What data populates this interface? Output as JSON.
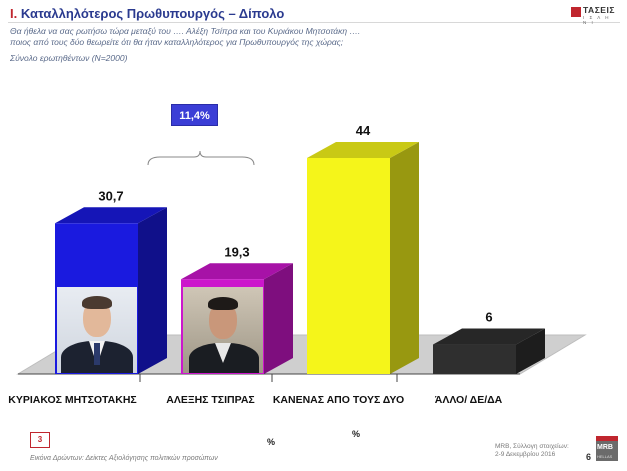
{
  "header": {
    "title_num": "Ι.",
    "title_text": "Καταλληλότερος Πρωθυπουργός – Δίπολο",
    "subtitle_line1": "Θα ήθελα να σας ρωτήσω τώρα μεταξύ του …. Αλέξη Τσίπρα και του Κυριάκου Μητσοτάκη ….",
    "subtitle_line2": "ποιος από τους δύο θεωρείτε ότι θα ήταν καταλληλότερος για Πρωθυπουργός της χώρας;",
    "subtitle_line3": "Σύνολο ερωτηθέντων (N=2000)",
    "logo_text": "ΤΑΣΕΙΣ",
    "logo_subtext": "Ι Σ Λ Η Ν Ι"
  },
  "chart_data": {
    "type": "bar",
    "categories": [
      "ΚΥΡΙΑΚΟΣ ΜΗΤΣΟΤΑΚΗΣ",
      "ΑΛΕΞΗΣ ΤΣΙΠΡΑΣ",
      "ΚΑΝΕΝΑΣ ΑΠΟ ΤΟΥΣ ΔΥΟ",
      "ΆΛΛΟ/ ΔΕ/ΔΑ"
    ],
    "values": [
      30.7,
      19.3,
      44,
      6
    ],
    "value_labels": [
      "30,7",
      "19,3",
      "44",
      "6"
    ],
    "colors": [
      "#1a1adf",
      "#cc16cc",
      "#f5f51a",
      "#2f2f2f"
    ],
    "unit_label": "%",
    "annotation": {
      "label": "11,4%",
      "between": [
        "ΚΥΡΙΑΚΟΣ ΜΗΤΣΟΤΑΚΗΣ",
        "ΑΛΕΞΗΣ ΤΣΙΠΡΑΣ"
      ]
    },
    "ylim": [
      0,
      44
    ],
    "grid": false,
    "legend": "none"
  },
  "footer": {
    "note": "Εικόνα Δρώντων: Δείκτες Αξιολόγησης πολιτικών προσώπων",
    "page_box": "3",
    "unit_left": "%",
    "source_line1": "MRB, Σύλλογη στοιχείων:",
    "source_line2": "2-9 Δεκεμβρίου 2016",
    "page_number": "6",
    "logo_text": "MRB",
    "logo_subtext": "HELLAS"
  }
}
